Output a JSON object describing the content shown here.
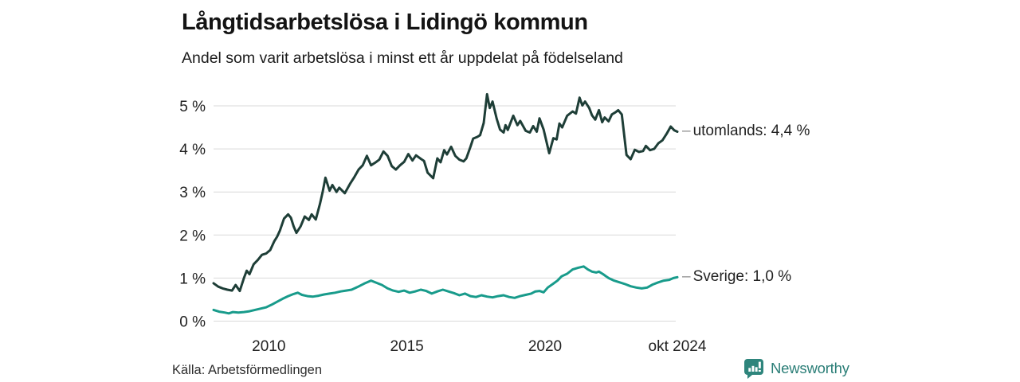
{
  "chart_data": {
    "type": "line",
    "title": "Långtidsarbetslösa i Lidingö kommun",
    "subtitle": "Andel som varit arbetslösa i minst ett år uppdelat på födelseland",
    "label_dash": "–",
    "grid_color": "#d9d9d9",
    "x_axis": {
      "range": [
        2008.0,
        2024.79
      ],
      "ticks": [
        {
          "label": "2010",
          "year": 2010
        },
        {
          "label": "2015",
          "year": 2015
        },
        {
          "label": "2020",
          "year": 2020
        },
        {
          "label": "okt 2024",
          "year": 2024.79
        }
      ]
    },
    "y_axis": {
      "range": [
        0,
        5
      ],
      "grid": true,
      "ticks": [
        {
          "label": "0 %",
          "value": 0
        },
        {
          "label": "1 %",
          "value": 1
        },
        {
          "label": "2 %",
          "value": 2
        },
        {
          "label": "3 %",
          "value": 3
        },
        {
          "label": "4 %",
          "value": 4
        },
        {
          "label": "5 %",
          "value": 5
        }
      ]
    },
    "legend_position": "right-end-labels",
    "series": [
      {
        "name": "utomlands",
        "end_label": "utomlands: 4,4 %",
        "end_value": "4,4 %",
        "color": "#1e3e37",
        "points": [
          [
            2008.0,
            0.88
          ],
          [
            2008.17,
            0.8
          ],
          [
            2008.33,
            0.76
          ],
          [
            2008.5,
            0.73
          ],
          [
            2008.67,
            0.71
          ],
          [
            2008.8,
            0.84
          ],
          [
            2008.95,
            0.7
          ],
          [
            2009.1,
            1.0
          ],
          [
            2009.2,
            1.17
          ],
          [
            2009.3,
            1.09
          ],
          [
            2009.45,
            1.32
          ],
          [
            2009.6,
            1.42
          ],
          [
            2009.75,
            1.54
          ],
          [
            2009.9,
            1.57
          ],
          [
            2010.05,
            1.65
          ],
          [
            2010.2,
            1.86
          ],
          [
            2010.3,
            1.96
          ],
          [
            2010.4,
            2.1
          ],
          [
            2010.55,
            2.38
          ],
          [
            2010.7,
            2.48
          ],
          [
            2010.8,
            2.4
          ],
          [
            2010.9,
            2.2
          ],
          [
            2011.0,
            2.05
          ],
          [
            2011.15,
            2.2
          ],
          [
            2011.3,
            2.43
          ],
          [
            2011.45,
            2.35
          ],
          [
            2011.55,
            2.48
          ],
          [
            2011.7,
            2.36
          ],
          [
            2011.85,
            2.72
          ],
          [
            2011.95,
            3.0
          ],
          [
            2012.05,
            3.33
          ],
          [
            2012.2,
            3.03
          ],
          [
            2012.3,
            3.16
          ],
          [
            2012.45,
            3.0
          ],
          [
            2012.55,
            3.1
          ],
          [
            2012.75,
            2.97
          ],
          [
            2012.95,
            3.2
          ],
          [
            2013.1,
            3.35
          ],
          [
            2013.25,
            3.52
          ],
          [
            2013.4,
            3.62
          ],
          [
            2013.55,
            3.84
          ],
          [
            2013.7,
            3.62
          ],
          [
            2013.85,
            3.68
          ],
          [
            2014.0,
            3.75
          ],
          [
            2014.15,
            3.94
          ],
          [
            2014.3,
            3.84
          ],
          [
            2014.45,
            3.6
          ],
          [
            2014.6,
            3.52
          ],
          [
            2014.75,
            3.62
          ],
          [
            2014.9,
            3.7
          ],
          [
            2015.05,
            3.88
          ],
          [
            2015.2,
            3.73
          ],
          [
            2015.33,
            3.85
          ],
          [
            2015.5,
            3.77
          ],
          [
            2015.62,
            3.72
          ],
          [
            2015.75,
            3.45
          ],
          [
            2015.95,
            3.32
          ],
          [
            2016.1,
            3.78
          ],
          [
            2016.22,
            3.69
          ],
          [
            2016.35,
            3.97
          ],
          [
            2016.45,
            3.87
          ],
          [
            2016.6,
            4.05
          ],
          [
            2016.75,
            3.84
          ],
          [
            2016.9,
            3.75
          ],
          [
            2017.05,
            3.71
          ],
          [
            2017.15,
            3.78
          ],
          [
            2017.3,
            4.05
          ],
          [
            2017.4,
            4.24
          ],
          [
            2017.55,
            4.28
          ],
          [
            2017.65,
            4.32
          ],
          [
            2017.78,
            4.6
          ],
          [
            2017.9,
            5.27
          ],
          [
            2018.0,
            4.95
          ],
          [
            2018.1,
            5.1
          ],
          [
            2018.25,
            4.7
          ],
          [
            2018.37,
            4.45
          ],
          [
            2018.5,
            4.38
          ],
          [
            2018.57,
            4.55
          ],
          [
            2018.65,
            4.44
          ],
          [
            2018.85,
            4.77
          ],
          [
            2019.0,
            4.55
          ],
          [
            2019.1,
            4.65
          ],
          [
            2019.3,
            4.42
          ],
          [
            2019.45,
            4.38
          ],
          [
            2019.57,
            4.53
          ],
          [
            2019.7,
            4.4
          ],
          [
            2019.8,
            4.71
          ],
          [
            2019.95,
            4.45
          ],
          [
            2020.15,
            3.9
          ],
          [
            2020.3,
            4.25
          ],
          [
            2020.42,
            4.22
          ],
          [
            2020.52,
            4.59
          ],
          [
            2020.62,
            4.5
          ],
          [
            2020.8,
            4.77
          ],
          [
            2021.0,
            4.87
          ],
          [
            2021.12,
            4.82
          ],
          [
            2021.25,
            5.19
          ],
          [
            2021.35,
            5.01
          ],
          [
            2021.45,
            5.1
          ],
          [
            2021.6,
            4.95
          ],
          [
            2021.7,
            4.78
          ],
          [
            2021.82,
            4.68
          ],
          [
            2021.95,
            4.9
          ],
          [
            2022.07,
            4.62
          ],
          [
            2022.16,
            4.73
          ],
          [
            2022.3,
            4.64
          ],
          [
            2022.42,
            4.8
          ],
          [
            2022.55,
            4.85
          ],
          [
            2022.65,
            4.9
          ],
          [
            2022.78,
            4.8
          ],
          [
            2022.95,
            3.86
          ],
          [
            2023.1,
            3.76
          ],
          [
            2023.25,
            3.98
          ],
          [
            2023.4,
            3.93
          ],
          [
            2023.55,
            3.95
          ],
          [
            2023.65,
            4.07
          ],
          [
            2023.8,
            3.97
          ],
          [
            2023.95,
            4.0
          ],
          [
            2024.1,
            4.13
          ],
          [
            2024.25,
            4.2
          ],
          [
            2024.4,
            4.35
          ],
          [
            2024.55,
            4.52
          ],
          [
            2024.68,
            4.43
          ],
          [
            2024.79,
            4.4
          ]
        ]
      },
      {
        "name": "Sverige",
        "end_label": "Sverige: 1,0 %",
        "end_value": "1,0 %",
        "color": "#189b8b",
        "points": [
          [
            2008.0,
            0.26
          ],
          [
            2008.2,
            0.22
          ],
          [
            2008.4,
            0.2
          ],
          [
            2008.55,
            0.18
          ],
          [
            2008.7,
            0.21
          ],
          [
            2008.9,
            0.2
          ],
          [
            2009.1,
            0.21
          ],
          [
            2009.3,
            0.23
          ],
          [
            2009.5,
            0.26
          ],
          [
            2009.7,
            0.29
          ],
          [
            2009.9,
            0.32
          ],
          [
            2010.1,
            0.38
          ],
          [
            2010.3,
            0.45
          ],
          [
            2010.5,
            0.52
          ],
          [
            2010.7,
            0.58
          ],
          [
            2010.9,
            0.63
          ],
          [
            2011.05,
            0.66
          ],
          [
            2011.2,
            0.61
          ],
          [
            2011.4,
            0.58
          ],
          [
            2011.6,
            0.57
          ],
          [
            2011.8,
            0.59
          ],
          [
            2012.0,
            0.62
          ],
          [
            2012.2,
            0.64
          ],
          [
            2012.4,
            0.66
          ],
          [
            2012.6,
            0.69
          ],
          [
            2012.8,
            0.71
          ],
          [
            2013.0,
            0.73
          ],
          [
            2013.2,
            0.79
          ],
          [
            2013.45,
            0.87
          ],
          [
            2013.7,
            0.94
          ],
          [
            2013.9,
            0.89
          ],
          [
            2014.1,
            0.84
          ],
          [
            2014.3,
            0.76
          ],
          [
            2014.5,
            0.71
          ],
          [
            2014.7,
            0.68
          ],
          [
            2014.9,
            0.71
          ],
          [
            2015.1,
            0.66
          ],
          [
            2015.3,
            0.69
          ],
          [
            2015.5,
            0.73
          ],
          [
            2015.7,
            0.7
          ],
          [
            2015.9,
            0.64
          ],
          [
            2016.1,
            0.69
          ],
          [
            2016.3,
            0.73
          ],
          [
            2016.5,
            0.69
          ],
          [
            2016.7,
            0.65
          ],
          [
            2016.9,
            0.6
          ],
          [
            2017.1,
            0.64
          ],
          [
            2017.3,
            0.58
          ],
          [
            2017.5,
            0.56
          ],
          [
            2017.7,
            0.6
          ],
          [
            2017.9,
            0.57
          ],
          [
            2018.1,
            0.55
          ],
          [
            2018.3,
            0.58
          ],
          [
            2018.5,
            0.6
          ],
          [
            2018.7,
            0.56
          ],
          [
            2018.9,
            0.54
          ],
          [
            2019.1,
            0.58
          ],
          [
            2019.3,
            0.61
          ],
          [
            2019.5,
            0.64
          ],
          [
            2019.65,
            0.69
          ],
          [
            2019.8,
            0.7
          ],
          [
            2019.95,
            0.67
          ],
          [
            2020.1,
            0.78
          ],
          [
            2020.3,
            0.87
          ],
          [
            2020.45,
            0.94
          ],
          [
            2020.6,
            1.04
          ],
          [
            2020.8,
            1.1
          ],
          [
            2021.0,
            1.2
          ],
          [
            2021.2,
            1.24
          ],
          [
            2021.4,
            1.27
          ],
          [
            2021.55,
            1.2
          ],
          [
            2021.7,
            1.15
          ],
          [
            2021.85,
            1.13
          ],
          [
            2021.95,
            1.15
          ],
          [
            2022.1,
            1.09
          ],
          [
            2022.3,
            1.0
          ],
          [
            2022.5,
            0.94
          ],
          [
            2022.7,
            0.9
          ],
          [
            2022.9,
            0.86
          ],
          [
            2023.1,
            0.81
          ],
          [
            2023.3,
            0.78
          ],
          [
            2023.5,
            0.76
          ],
          [
            2023.7,
            0.78
          ],
          [
            2023.9,
            0.85
          ],
          [
            2024.1,
            0.9
          ],
          [
            2024.3,
            0.94
          ],
          [
            2024.5,
            0.96
          ],
          [
            2024.65,
            1.0
          ],
          [
            2024.79,
            1.02
          ]
        ]
      }
    ]
  },
  "footer": {
    "source": "Källa: Arbetsförmedlingen",
    "brand": "Newsworthy",
    "brand_color": "#2b7e77",
    "logo_color": "#2e857c"
  }
}
